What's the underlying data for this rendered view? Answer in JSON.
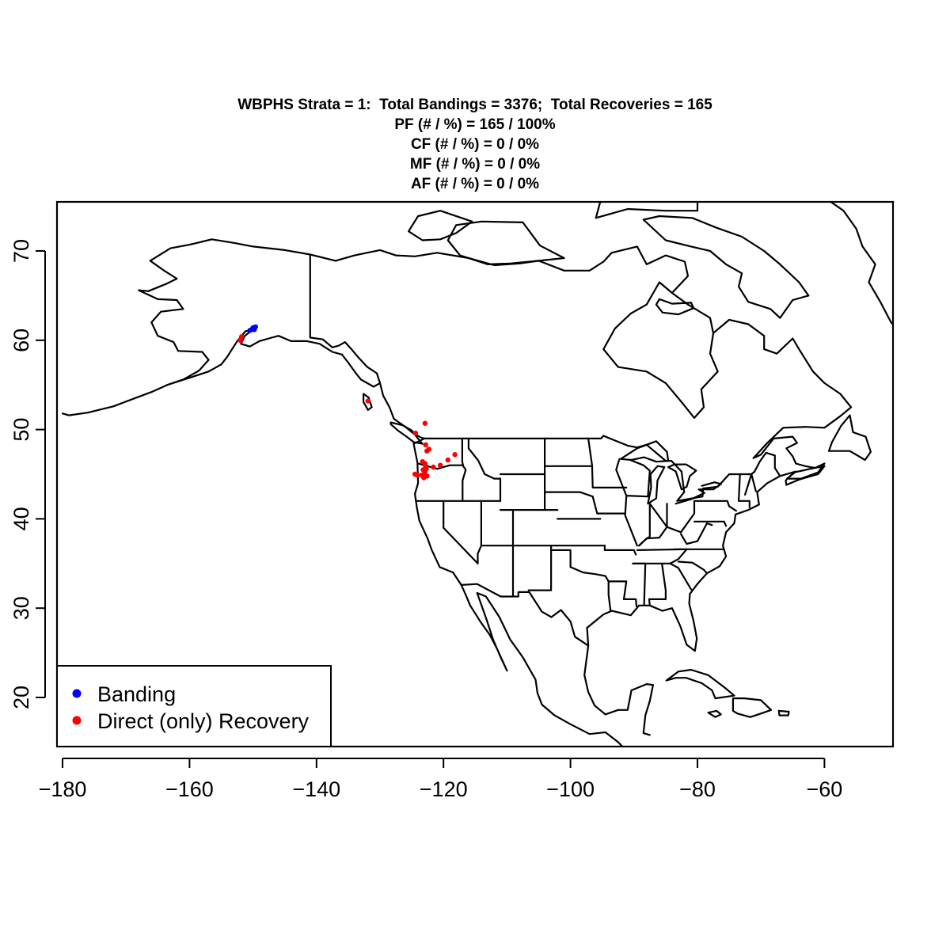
{
  "title_lines": [
    "WBPHS Strata = 1:  Total Bandings = 3376;  Total Recoveries = 165",
    "PF (# / %) = 165 / 100%",
    "CF (# / %) = 0 / 0%",
    "MF (# / %) = 0 / 0%",
    "AF (# / %) = 0 / 0%"
  ],
  "chart_data": {
    "type": "scatter",
    "xlim": [
      -180,
      -49
    ],
    "ylim": [
      14,
      75.5
    ],
    "x_ticks": [
      -180,
      -160,
      -140,
      -120,
      -100,
      -80,
      -60
    ],
    "y_ticks": [
      20,
      30,
      40,
      50,
      60,
      70
    ],
    "x_tick_labels": [
      "−180",
      "−160",
      "−140",
      "−120",
      "−100",
      "−80",
      "−60"
    ],
    "y_tick_labels": [
      "20",
      "30",
      "40",
      "50",
      "60",
      "70"
    ],
    "legend_position": "bottom-left",
    "grid": false,
    "series": [
      {
        "name": "Banding",
        "color": "#0000ff",
        "points": [
          {
            "x": -150.2,
            "y": 61.2
          },
          {
            "x": -149.9,
            "y": 61.3
          },
          {
            "x": -149.6,
            "y": 61.5
          },
          {
            "x": -150.5,
            "y": 61.1
          },
          {
            "x": -149.8,
            "y": 61.2
          },
          {
            "x": -150.0,
            "y": 61.4
          }
        ]
      },
      {
        "name": "Direct (only) Recovery",
        "color": "#ff0000",
        "points": [
          {
            "x": -151.8,
            "y": 60.4
          },
          {
            "x": -152.0,
            "y": 60.0
          },
          {
            "x": -131.9,
            "y": 53.2
          },
          {
            "x": -122.9,
            "y": 50.7
          },
          {
            "x": -124.4,
            "y": 49.6
          },
          {
            "x": -122.8,
            "y": 48.3
          },
          {
            "x": -122.6,
            "y": 47.6
          },
          {
            "x": -118.2,
            "y": 47.2
          },
          {
            "x": -119.3,
            "y": 46.6
          },
          {
            "x": -120.5,
            "y": 46.0
          },
          {
            "x": -121.6,
            "y": 45.8
          },
          {
            "x": -122.9,
            "y": 46.2
          },
          {
            "x": -123.2,
            "y": 45.5
          },
          {
            "x": -122.7,
            "y": 45.6
          },
          {
            "x": -122.9,
            "y": 45.3
          },
          {
            "x": -123.0,
            "y": 45.0
          },
          {
            "x": -123.4,
            "y": 44.9
          },
          {
            "x": -122.6,
            "y": 44.8
          },
          {
            "x": -123.1,
            "y": 44.6
          },
          {
            "x": -124.1,
            "y": 44.9
          },
          {
            "x": -124.5,
            "y": 45.0
          },
          {
            "x": -122.8,
            "y": 45.9
          },
          {
            "x": -123.3,
            "y": 46.4
          },
          {
            "x": -122.3,
            "y": 47.8
          }
        ]
      }
    ]
  }
}
